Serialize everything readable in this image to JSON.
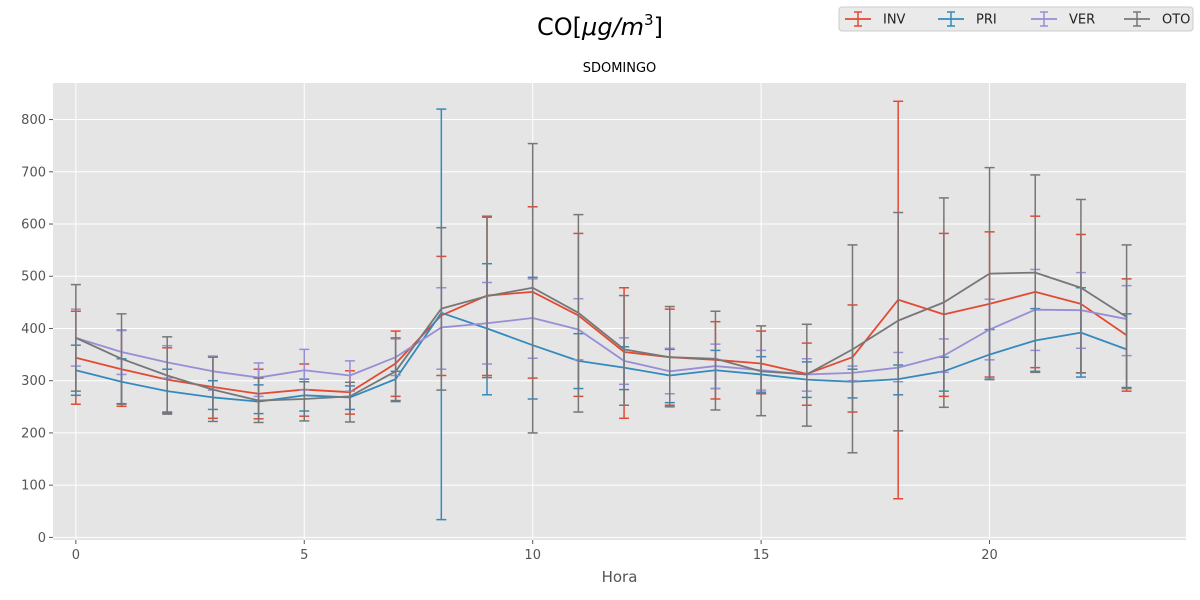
{
  "figure": {
    "suptitle_main": "CO[",
    "suptitle_mu": "μ",
    "suptitle_g": "g",
    "suptitle_slash": "/",
    "suptitle_m": "m",
    "suptitle_exp": "3",
    "suptitle_end": "]"
  },
  "chart_data": {
    "type": "line",
    "title": "SDOMINGO",
    "xlabel": "Hora",
    "ylabel": "",
    "xlim": [
      -0.5,
      24.3
    ],
    "ylim": [
      -5,
      870
    ],
    "xticks": [
      0,
      5,
      10,
      15,
      20
    ],
    "yticks": [
      0,
      100,
      200,
      300,
      400,
      500,
      600,
      700,
      800
    ],
    "grid": true,
    "legend_position": "top-right",
    "x": [
      0,
      1,
      2,
      3,
      4,
      5,
      6,
      7,
      8,
      9,
      10,
      11,
      12,
      13,
      14,
      15,
      16,
      17,
      18,
      19,
      20,
      21,
      22,
      23
    ],
    "series": [
      {
        "name": "INV",
        "color": "#E24A33",
        "values": [
          344,
          322,
          302,
          288,
          275,
          283,
          278,
          333,
          425,
          463,
          470,
          425,
          355,
          345,
          340,
          333,
          313,
          345,
          455,
          427,
          447,
          470,
          447,
          387
        ],
        "upper": [
          433,
          397,
          363,
          347,
          322,
          332,
          319,
          395,
          538,
          615,
          633,
          582,
          478,
          437,
          413,
          395,
          372,
          445,
          835,
          582,
          585,
          615,
          580,
          495
        ],
        "lower": [
          255,
          251,
          240,
          228,
          227,
          232,
          236,
          270,
          310,
          310,
          305,
          270,
          228,
          253,
          265,
          275,
          253,
          240,
          74,
          270,
          307,
          325,
          315,
          280
        ]
      },
      {
        "name": "PRI",
        "color": "#348ABD",
        "values": [
          320,
          298,
          280,
          268,
          260,
          272,
          268,
          303,
          430,
          400,
          368,
          338,
          325,
          310,
          320,
          312,
          302,
          298,
          303,
          318,
          350,
          377,
          392,
          360
        ],
        "upper": [
          368,
          342,
          322,
          300,
          292,
          303,
          290,
          318,
          820,
          524,
          498,
          390,
          365,
          360,
          358,
          346,
          336,
          322,
          330,
          345,
          398,
          438,
          478,
          428
        ],
        "lower": [
          272,
          256,
          238,
          245,
          237,
          242,
          245,
          260,
          34,
          273,
          265,
          285,
          283,
          258,
          285,
          278,
          268,
          267,
          273,
          280,
          303,
          318,
          307,
          287
        ]
      },
      {
        "name": "VER",
        "color": "#988ED5",
        "values": [
          382,
          355,
          335,
          318,
          306,
          320,
          310,
          345,
          402,
          410,
          420,
          398,
          338,
          318,
          328,
          320,
          312,
          315,
          325,
          348,
          398,
          436,
          435,
          418
        ],
        "upper": [
          437,
          396,
          367,
          347,
          334,
          360,
          338,
          380,
          478,
          488,
          495,
          457,
          382,
          362,
          370,
          358,
          342,
          328,
          354,
          380,
          456,
          513,
          507,
          482
        ],
        "lower": [
          328,
          312,
          305,
          282,
          270,
          282,
          280,
          310,
          322,
          332,
          343,
          340,
          293,
          275,
          285,
          282,
          280,
          300,
          298,
          316,
          340,
          358,
          362,
          348
        ]
      },
      {
        "name": "OTO",
        "color": "#777777",
        "values": [
          382,
          342,
          310,
          283,
          262,
          265,
          270,
          318,
          438,
          462,
          478,
          430,
          360,
          345,
          342,
          318,
          312,
          360,
          415,
          450,
          505,
          507,
          478,
          422
        ],
        "upper": [
          484,
          428,
          384,
          345,
          305,
          298,
          297,
          382,
          593,
          613,
          754,
          618,
          463,
          442,
          433,
          405,
          408,
          560,
          622,
          650,
          708,
          694,
          647,
          560
        ],
        "lower": [
          280,
          255,
          236,
          222,
          220,
          223,
          221,
          262,
          282,
          306,
          200,
          240,
          253,
          250,
          244,
          233,
          213,
          162,
          204,
          249,
          302,
          316,
          315,
          285
        ]
      }
    ]
  }
}
